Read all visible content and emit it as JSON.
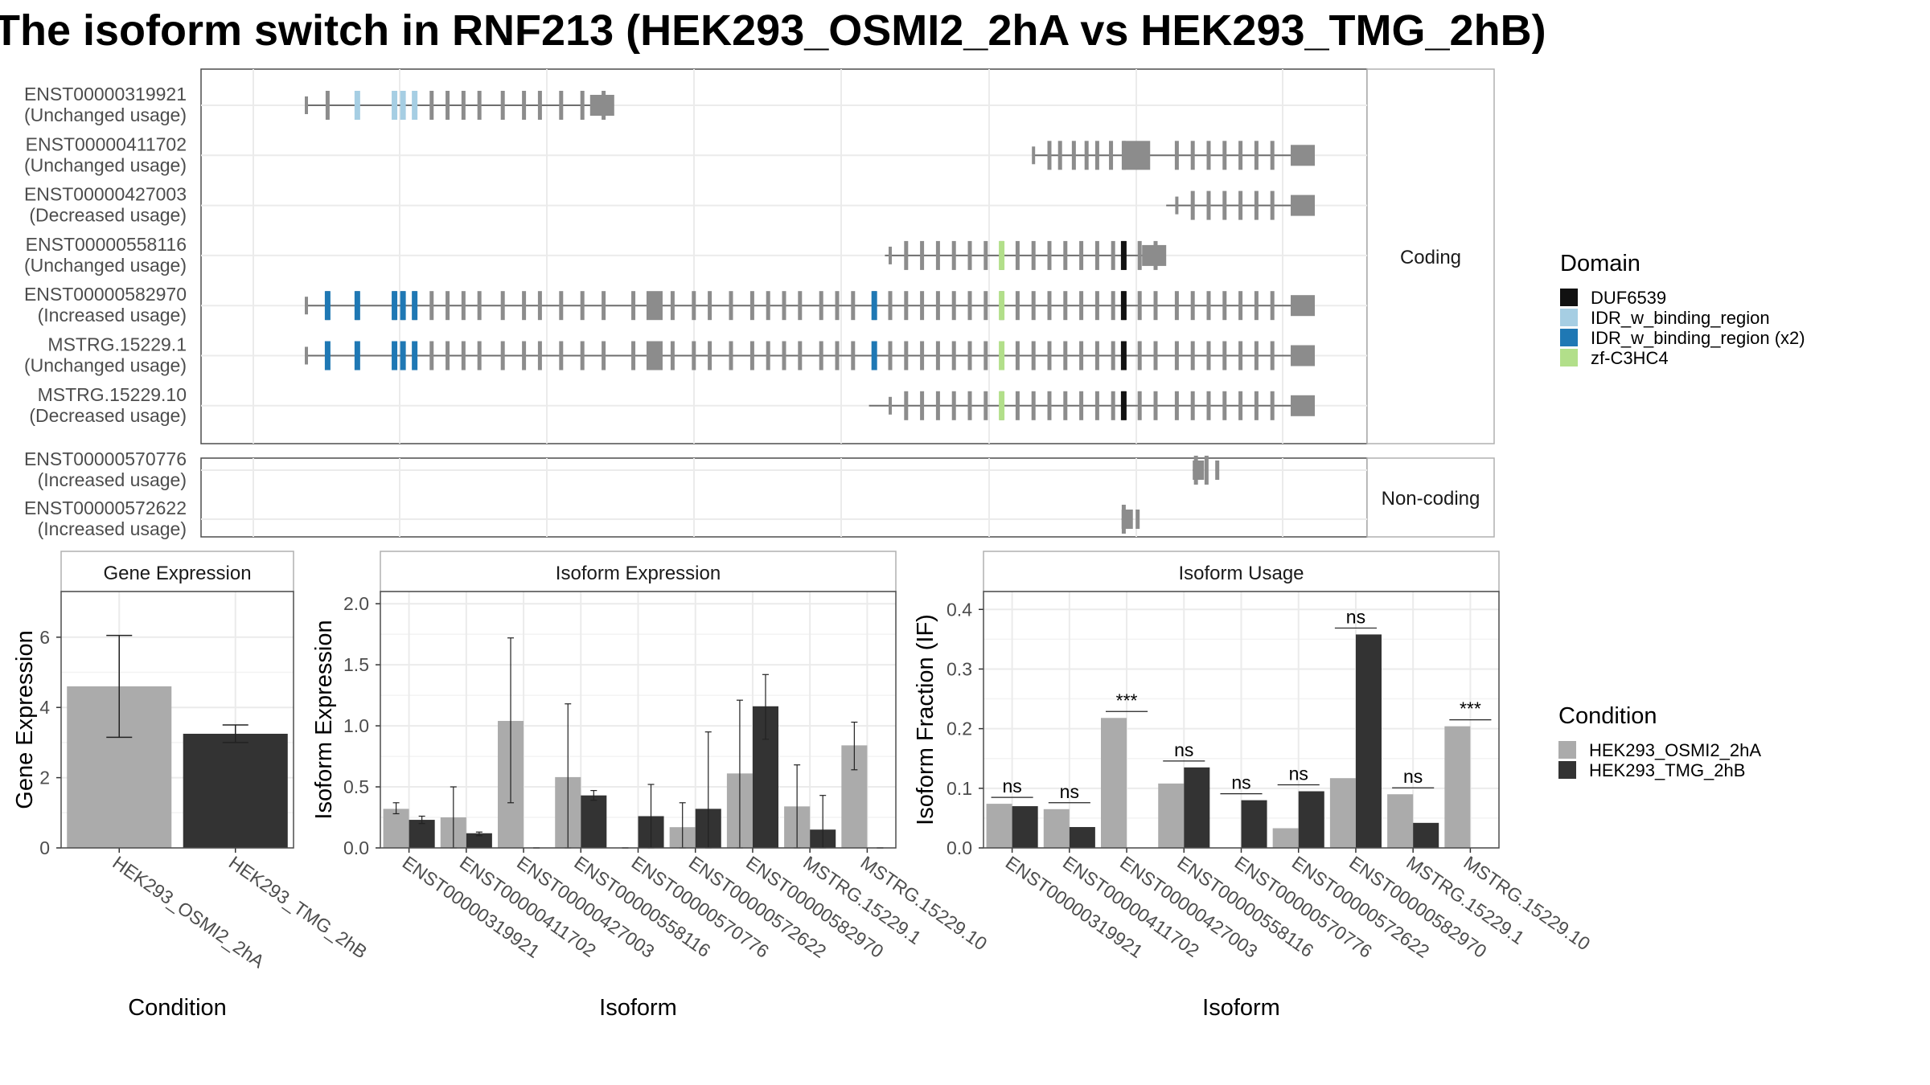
{
  "title": "The isoform switch in RNF213 (HEK293_OSMI2_2hA vs HEK293_TMG_2hB)",
  "colors": {
    "exon": "#8c8c8c",
    "intron": "#6e6e6e",
    "panel_border": "#4d4d4d",
    "grid": "#ebebeb",
    "strip_bg": "#ffffff",
    "cond_a": "#ababab",
    "cond_b": "#333333"
  },
  "structure": {
    "coding_strip": "Coding",
    "noncoding_strip": "Non-coding",
    "isoforms": [
      {
        "id": "ENST00000319921",
        "usage": "(Unchanged usage)",
        "group": "coding",
        "span": [
          0.05,
          0.34
        ],
        "pattern": "first",
        "domains": [
          [
            0.098,
            "IDR_w_binding_region"
          ],
          [
            0.133,
            "IDR_w_binding_region"
          ],
          [
            0.141,
            "IDR_w_binding_region"
          ],
          [
            0.152,
            "IDR_w_binding_region"
          ]
        ]
      },
      {
        "id": "ENST00000411702",
        "usage": "(Unchanged usage)",
        "group": "coding",
        "span": [
          0.735,
          1.0
        ],
        "pattern": "tail",
        "domains": []
      },
      {
        "id": "ENST00000427003",
        "usage": "(Decreased usage)",
        "group": "coding",
        "span": [
          0.86,
          1.0
        ],
        "pattern": "tail_short",
        "domains": []
      },
      {
        "id": "ENST00000558116",
        "usage": "(Unchanged usage)",
        "group": "coding",
        "span": [
          0.595,
          0.86
        ],
        "pattern": "mid",
        "domains": [
          [
            0.705,
            "zf-C3HC4"
          ],
          [
            0.82,
            "DUF6539"
          ]
        ]
      },
      {
        "id": "ENST00000582970",
        "usage": "(Increased usage)",
        "group": "coding",
        "span": [
          0.05,
          1.0
        ],
        "pattern": "full",
        "domains": [
          [
            0.07,
            "IDR_w_binding_region (x2)"
          ],
          [
            0.098,
            "IDR_w_binding_region (x2)"
          ],
          [
            0.133,
            "IDR_w_binding_region (x2)"
          ],
          [
            0.141,
            "IDR_w_binding_region (x2)"
          ],
          [
            0.152,
            "IDR_w_binding_region (x2)"
          ],
          [
            0.585,
            "IDR_w_binding_region (x2)"
          ],
          [
            0.705,
            "zf-C3HC4"
          ],
          [
            0.82,
            "DUF6539"
          ]
        ]
      },
      {
        "id": "MSTRG.15229.1",
        "usage": "(Unchanged usage)",
        "group": "coding",
        "span": [
          0.05,
          1.0
        ],
        "pattern": "full",
        "domains": [
          [
            0.07,
            "IDR_w_binding_region (x2)"
          ],
          [
            0.098,
            "IDR_w_binding_region (x2)"
          ],
          [
            0.133,
            "IDR_w_binding_region (x2)"
          ],
          [
            0.141,
            "IDR_w_binding_region (x2)"
          ],
          [
            0.152,
            "IDR_w_binding_region (x2)"
          ],
          [
            0.585,
            "IDR_w_binding_region (x2)"
          ],
          [
            0.705,
            "zf-C3HC4"
          ],
          [
            0.82,
            "DUF6539"
          ]
        ]
      },
      {
        "id": "MSTRG.15229.10",
        "usage": "(Decreased usage)",
        "group": "coding",
        "span": [
          0.58,
          1.0
        ],
        "pattern": "mid_full",
        "domains": [
          [
            0.705,
            "zf-C3HC4"
          ],
          [
            0.82,
            "DUF6539"
          ]
        ]
      },
      {
        "id": "ENST00000570776",
        "usage": "(Increased usage)",
        "group": "noncoding",
        "span": [
          0.885,
          0.91
        ],
        "pattern": "nc1",
        "domains": []
      },
      {
        "id": "ENST00000572622",
        "usage": "(Increased usage)",
        "group": "noncoding",
        "span": [
          0.818,
          0.835
        ],
        "pattern": "nc2",
        "domains": []
      }
    ]
  },
  "legend_domain": {
    "title": "Domain",
    "items": [
      {
        "label": "DUF6539",
        "color": "#111111"
      },
      {
        "label": "IDR_w_binding_region",
        "color": "#a6cee3"
      },
      {
        "label": "IDR_w_binding_region (x2)",
        "color": "#1f78b4"
      },
      {
        "label": "zf-C3HC4",
        "color": "#b2df8a"
      }
    ]
  },
  "legend_condition": {
    "title": "Condition",
    "items": [
      {
        "label": "HEK293_OSMI2_2hA",
        "color": "#ababab"
      },
      {
        "label": "HEK293_TMG_2hB",
        "color": "#333333"
      }
    ]
  },
  "chart_data": [
    {
      "type": "bar",
      "title": "Gene Expression",
      "xlabel": "Condition",
      "ylabel": "Gene Expression",
      "ylim": [
        0,
        7.3
      ],
      "yticks": [
        0,
        2,
        4,
        6
      ],
      "categories": [
        "HEK293_OSMI2_2hA",
        "HEK293_TMG_2hB"
      ],
      "values": [
        4.6,
        3.25
      ],
      "errors": [
        [
          3.15,
          6.05
        ],
        [
          3.0,
          3.5
        ]
      ]
    },
    {
      "type": "bar",
      "title": "Isoform Expression",
      "xlabel": "Isoform",
      "ylabel": "Isoform Expression",
      "ylim": [
        0,
        2.1
      ],
      "yticks": [
        0.0,
        0.5,
        1.0,
        1.5,
        2.0
      ],
      "categories": [
        "ENST00000319921",
        "ENST00000411702",
        "ENST00000427003",
        "ENST00000558116",
        "ENST00000570776",
        "ENST00000572622",
        "ENST00000582970",
        "MSTRG.15229.1",
        "MSTRG.15229.10"
      ],
      "series": [
        {
          "name": "HEK293_OSMI2_2hA",
          "values": [
            0.32,
            0.25,
            1.04,
            0.58,
            0.0,
            0.17,
            0.61,
            0.34,
            0.84
          ],
          "errors": [
            [
              0.28,
              0.37
            ],
            [
              0.0,
              0.5
            ],
            [
              0.37,
              1.72
            ],
            [
              0.0,
              1.18
            ],
            [
              0.0,
              0.0
            ],
            [
              0.0,
              0.37
            ],
            [
              0.0,
              1.21
            ],
            [
              0.0,
              0.68
            ],
            [
              0.64,
              1.03
            ]
          ]
        },
        {
          "name": "HEK293_TMG_2hB",
          "values": [
            0.23,
            0.12,
            0.0,
            0.43,
            0.26,
            0.32,
            1.16,
            0.15,
            0.0
          ],
          "errors": [
            [
              0.2,
              0.26
            ],
            [
              0.1,
              0.13
            ],
            [
              0.0,
              0.0
            ],
            [
              0.39,
              0.47
            ],
            [
              0.0,
              0.52
            ],
            [
              0.0,
              0.95
            ],
            [
              0.89,
              1.42
            ],
            [
              0.0,
              0.43
            ],
            [
              0.0,
              0.0
            ]
          ]
        }
      ]
    },
    {
      "type": "bar",
      "title": "Isoform Usage",
      "xlabel": "Isoform",
      "ylabel": "Isoform Fraction (IF)",
      "ylim": [
        0,
        0.43
      ],
      "yticks": [
        0.0,
        0.1,
        0.2,
        0.3,
        0.4
      ],
      "categories": [
        "ENST00000319921",
        "ENST00000411702",
        "ENST00000427003",
        "ENST00000558116",
        "ENST00000570776",
        "ENST00000572622",
        "ENST00000582970",
        "MSTRG.15229.1",
        "MSTRG.15229.10"
      ],
      "series": [
        {
          "name": "HEK293_OSMI2_2hA",
          "values": [
            0.074,
            0.065,
            0.218,
            0.108,
            0.0,
            0.033,
            0.117,
            0.09,
            0.204
          ]
        },
        {
          "name": "HEK293_TMG_2hB",
          "values": [
            0.07,
            0.035,
            0.0,
            0.135,
            0.08,
            0.095,
            0.358,
            0.042,
            0.0
          ]
        }
      ],
      "significance": [
        "ns",
        "ns",
        "***",
        "ns",
        "ns",
        "ns",
        "ns",
        "ns",
        "***"
      ]
    }
  ]
}
